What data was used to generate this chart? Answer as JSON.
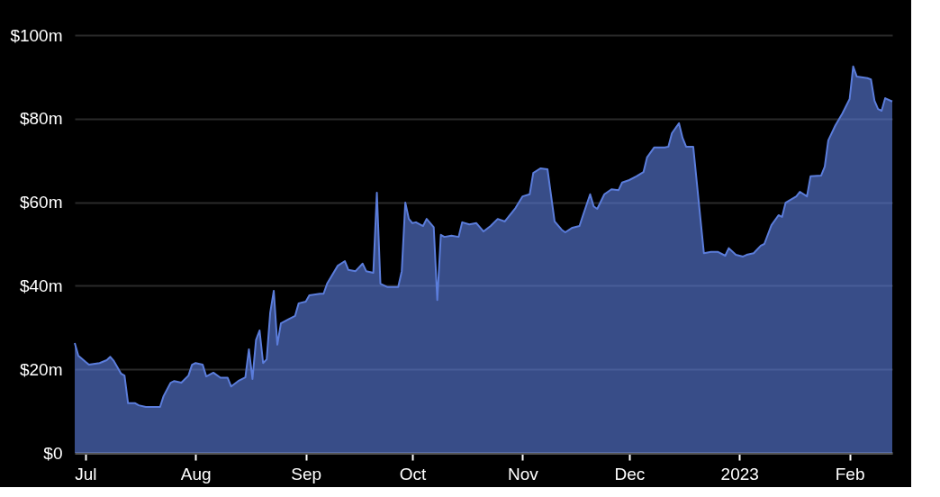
{
  "chart_data": {
    "type": "area",
    "x": [
      "2022-06-28",
      "2022-06-29",
      "2022-07-01",
      "2022-07-02",
      "2022-07-05",
      "2022-07-07",
      "2022-07-08",
      "2022-07-09",
      "2022-07-11",
      "2022-07-12",
      "2022-07-13",
      "2022-07-15",
      "2022-07-16",
      "2022-07-18",
      "2022-07-22",
      "2022-07-23",
      "2022-07-25",
      "2022-07-26",
      "2022-07-28",
      "2022-07-30",
      "2022-07-31",
      "2022-08-01",
      "2022-08-03",
      "2022-08-04",
      "2022-08-06",
      "2022-08-08",
      "2022-08-10",
      "2022-08-11",
      "2022-08-13",
      "2022-08-15",
      "2022-08-16",
      "2022-08-17",
      "2022-08-18",
      "2022-08-19",
      "2022-08-20",
      "2022-08-21",
      "2022-08-22",
      "2022-08-23",
      "2022-08-24",
      "2022-08-25",
      "2022-08-27",
      "2022-08-29",
      "2022-08-30",
      "2022-09-01",
      "2022-09-02",
      "2022-09-05",
      "2022-09-06",
      "2022-09-07",
      "2022-09-10",
      "2022-09-12",
      "2022-09-13",
      "2022-09-15",
      "2022-09-17",
      "2022-09-18",
      "2022-09-20",
      "2022-09-21",
      "2022-09-22",
      "2022-09-24",
      "2022-09-27",
      "2022-09-28",
      "2022-09-29",
      "2022-09-30",
      "2022-10-01",
      "2022-10-02",
      "2022-10-04",
      "2022-10-05",
      "2022-10-07",
      "2022-10-08",
      "2022-10-09",
      "2022-10-10",
      "2022-10-12",
      "2022-10-14",
      "2022-10-15",
      "2022-10-17",
      "2022-10-19",
      "2022-10-21",
      "2022-10-23",
      "2022-10-25",
      "2022-10-27",
      "2022-10-30",
      "2022-11-01",
      "2022-11-03",
      "2022-11-04",
      "2022-11-06",
      "2022-11-08",
      "2022-11-10",
      "2022-11-12",
      "2022-11-13",
      "2022-11-15",
      "2022-11-17",
      "2022-11-18",
      "2022-11-20",
      "2022-11-21",
      "2022-11-22",
      "2022-11-24",
      "2022-11-26",
      "2022-11-28",
      "2022-11-29",
      "2022-12-01",
      "2022-12-03",
      "2022-12-05",
      "2022-12-06",
      "2022-12-08",
      "2022-12-10",
      "2022-12-11",
      "2022-12-12",
      "2022-12-13",
      "2022-12-15",
      "2022-12-16",
      "2022-12-17",
      "2022-12-19",
      "2022-12-22",
      "2022-12-24",
      "2022-12-26",
      "2022-12-28",
      "2022-12-29",
      "2022-12-31",
      "2023-01-02",
      "2023-01-03",
      "2023-01-05",
      "2023-01-07",
      "2023-01-08",
      "2023-01-10",
      "2023-01-12",
      "2023-01-13",
      "2023-01-14",
      "2023-01-17",
      "2023-01-18",
      "2023-01-20",
      "2023-01-21",
      "2023-01-24",
      "2023-01-25",
      "2023-01-26",
      "2023-01-28",
      "2023-01-30",
      "2023-02-01",
      "2023-02-02",
      "2023-02-03",
      "2023-02-06",
      "2023-02-07",
      "2023-02-08",
      "2023-02-09",
      "2023-02-10",
      "2023-02-11",
      "2023-02-13"
    ],
    "series": [
      {
        "color": "#5b7ddb",
        "values": [
          26.3,
          23.3,
          21.8,
          21.1,
          21.5,
          22.2,
          23,
          22,
          19,
          18.5,
          11.9,
          11.9,
          11.4,
          11,
          11,
          13.6,
          16.8,
          17.2,
          16.8,
          18.5,
          21.1,
          21.5,
          21.1,
          18.3,
          19.2,
          18,
          18,
          15.9,
          17.2,
          18.1,
          24.8,
          17.7,
          27,
          29.3,
          21.5,
          22.4,
          33.6,
          38.8,
          25.9,
          31,
          31.9,
          32.8,
          35.8,
          36.2,
          37.7,
          38.1,
          38.1,
          40.5,
          44.8,
          45.9,
          43.8,
          43.5,
          45.3,
          43.5,
          43.1,
          62.3,
          40.5,
          39.7,
          39.7,
          43.5,
          59.9,
          56,
          55,
          55.2,
          54.3,
          56,
          54,
          36.6,
          52.2,
          51.7,
          52,
          51.7,
          55.2,
          54.7,
          55,
          53,
          54.3,
          56,
          55.4,
          58.6,
          61.4,
          61.9,
          67,
          68.1,
          67.9,
          55.4,
          53.4,
          52.8,
          53.9,
          54.3,
          56.9,
          61.9,
          59,
          58.4,
          61.9,
          63.1,
          62.9,
          64.7,
          65.3,
          66.2,
          67.2,
          70.7,
          73.1,
          73.1,
          73.1,
          73.3,
          76.5,
          78.9,
          75.4,
          73.3,
          73.3,
          47.8,
          48.1,
          48.1,
          47.2,
          49,
          47.4,
          47,
          47.4,
          47.8,
          49.6,
          50,
          54.5,
          56.9,
          56.5,
          59.9,
          61.4,
          62.5,
          61.4,
          66.2,
          66.4,
          68.5,
          74.8,
          78.4,
          81.3,
          84.7,
          92.5,
          90.1,
          89.7,
          89.4,
          84.3,
          82.3,
          81.9,
          84.9,
          84.1
        ]
      }
    ],
    "xlim": [
      "2022-06-28",
      "2023-02-13"
    ],
    "xticks": [
      {
        "value": "2022-07-01",
        "label": "Jul"
      },
      {
        "value": "2022-08-01",
        "label": "Aug"
      },
      {
        "value": "2022-09-01",
        "label": "Sep"
      },
      {
        "value": "2022-10-01",
        "label": "Oct"
      },
      {
        "value": "2022-11-01",
        "label": "Nov"
      },
      {
        "value": "2022-12-01",
        "label": "Dec"
      },
      {
        "value": "2023-01-01",
        "label": "2023"
      },
      {
        "value": "2023-02-01",
        "label": "Feb"
      }
    ],
    "ylim": [
      0,
      100
    ],
    "yticks": [
      {
        "value": 0,
        "label": "$0"
      },
      {
        "value": 20,
        "label": "$20m"
      },
      {
        "value": 40,
        "label": "$40m"
      },
      {
        "value": 60,
        "label": "$60m"
      },
      {
        "value": 80,
        "label": "$80m"
      },
      {
        "value": 100,
        "label": "$100m"
      }
    ],
    "grid": "y",
    "line_style": "solid",
    "marker": "none"
  }
}
